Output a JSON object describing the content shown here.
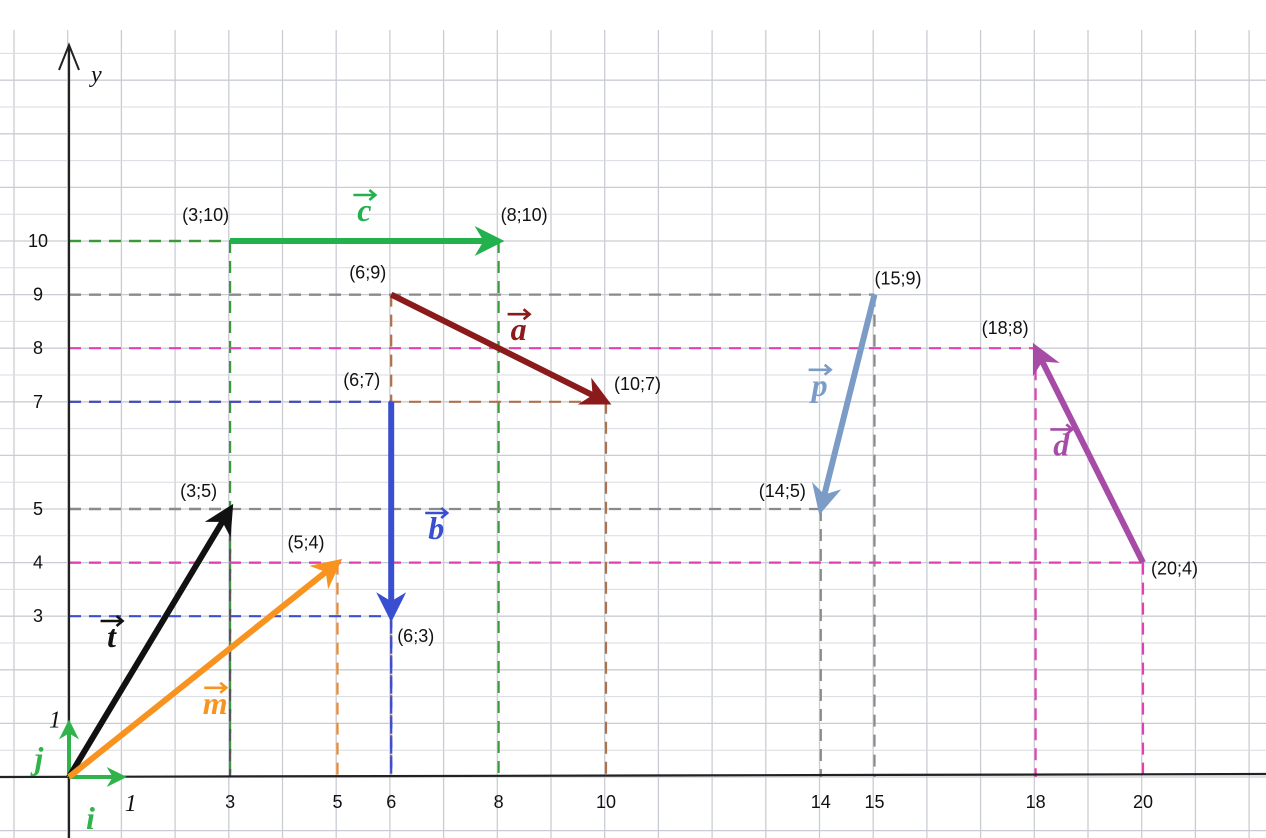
{
  "diagram": {
    "axis": {
      "y_label": "y",
      "x_ticks": [
        "3",
        "5",
        "6",
        "8",
        "10",
        "14",
        "15",
        "18",
        "20"
      ],
      "y_ticks": [
        "3",
        "4",
        "5",
        "7",
        "8",
        "9",
        "10"
      ],
      "unit_x_label": "1",
      "unit_y_label": "1"
    },
    "unit_vectors": [
      {
        "name": "i",
        "label": "i",
        "color": "#2fb34a",
        "from": [
          0,
          0
        ],
        "to": [
          1,
          0
        ]
      },
      {
        "name": "j",
        "label": "j",
        "color": "#2fb34a",
        "from": [
          0,
          0
        ],
        "to": [
          0,
          1
        ]
      }
    ],
    "vectors": [
      {
        "name": "c",
        "label": "c",
        "color": "#22b14c",
        "from": [
          3,
          10
        ],
        "to": [
          8,
          10
        ],
        "from_label": "(3;10)",
        "to_label": "(8;10)",
        "guide_color": "#3a9a3a"
      },
      {
        "name": "a",
        "label": "a",
        "color": "#8b1a1a",
        "from": [
          6,
          9
        ],
        "to": [
          10,
          7
        ],
        "from_label": "(6;9)",
        "to_label": "(10;7)",
        "guide_color": "#b0704a"
      },
      {
        "name": "b",
        "label": "b",
        "color": "#3a4fd0",
        "from": [
          6,
          7
        ],
        "to": [
          6,
          3
        ],
        "from_label": "(6;7)",
        "to_label": "(6;3)",
        "guide_color": "#3a4fd0"
      },
      {
        "name": "t",
        "label": "t",
        "color": "#111111",
        "from": [
          0,
          0
        ],
        "to": [
          3,
          5
        ],
        "from_label": "",
        "to_label": "(3;5)",
        "guide_color": "#555555"
      },
      {
        "name": "m",
        "label": "m",
        "color": "#f7931e",
        "from": [
          0,
          0
        ],
        "to": [
          5,
          4
        ],
        "from_label": "",
        "to_label": "(5;4)",
        "guide_color": "#f08a30"
      },
      {
        "name": "p",
        "label": "p",
        "color": "#7a9cc6",
        "from": [
          15,
          9
        ],
        "to": [
          14,
          5
        ],
        "from_label": "(15;9)",
        "to_label": "(14;5)",
        "guide_color": "#8a8a8a"
      },
      {
        "name": "d",
        "label": "d",
        "color": "#a64ca6",
        "from": [
          20,
          4
        ],
        "to": [
          18,
          8
        ],
        "from_label": "(20;4)",
        "to_label": "(18;8)",
        "guide_color": "#e040b0"
      }
    ]
  }
}
